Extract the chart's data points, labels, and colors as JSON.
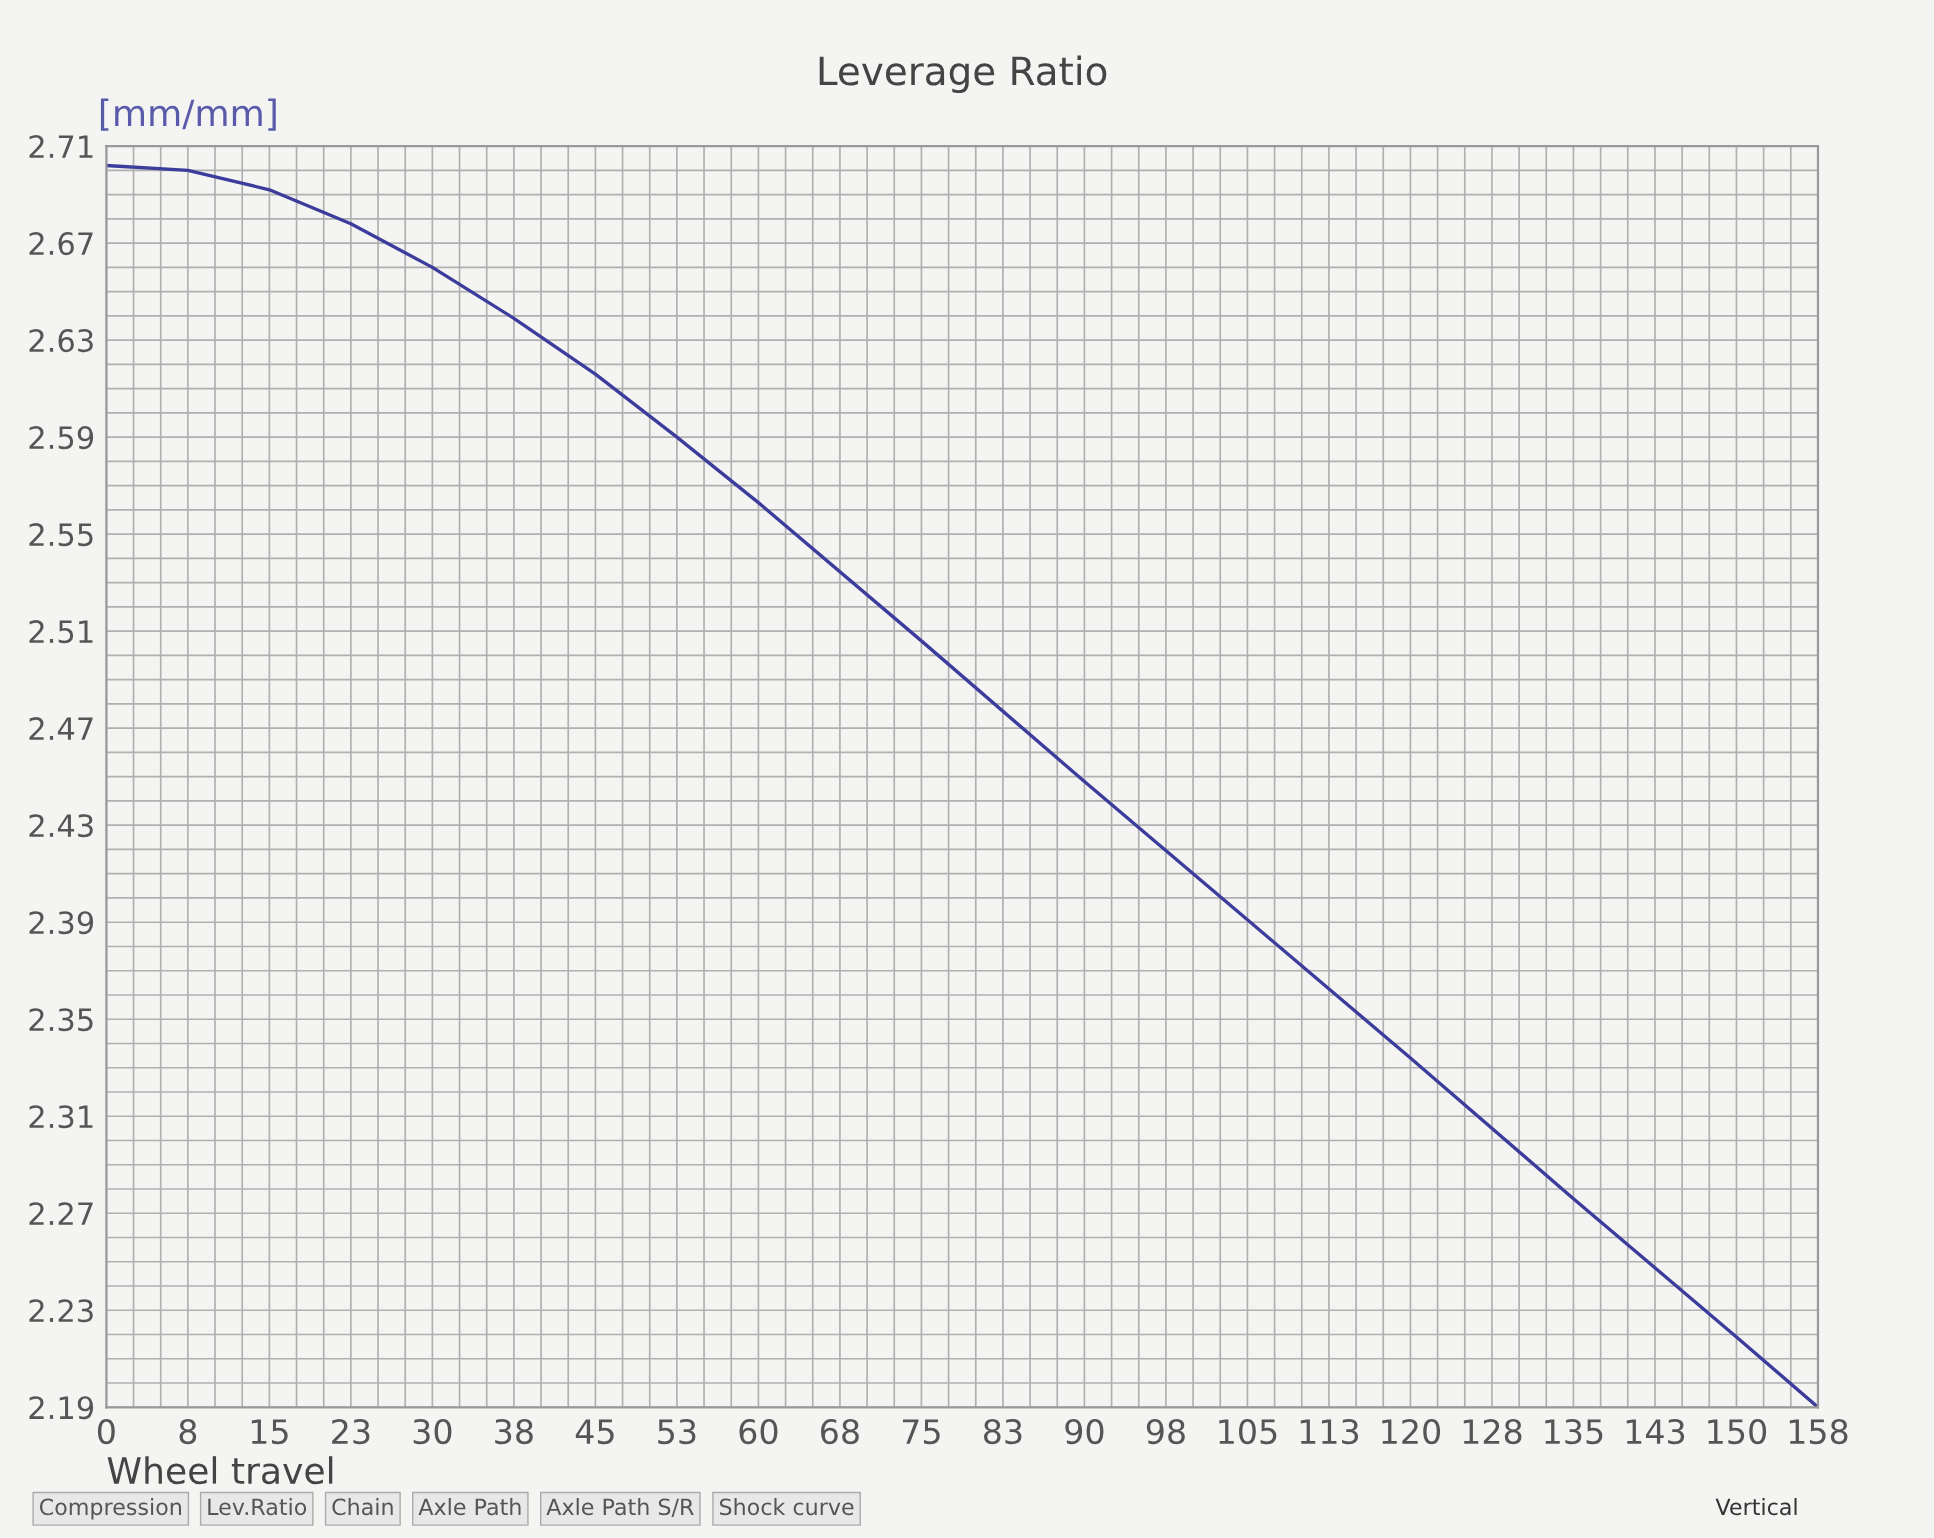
{
  "chart_data": {
    "type": "line",
    "title": "Leverage Ratio",
    "xlabel": "Wheel travel",
    "ylabel": "[mm/mm]",
    "x": [
      0,
      7.5,
      15,
      22.5,
      30,
      37.5,
      45,
      52.5,
      60,
      75,
      90,
      105,
      120,
      135,
      150,
      157.5
    ],
    "series": [
      {
        "color": "#3c3c9c",
        "values": [
          2.702,
          2.7,
          2.692,
          2.678,
          2.66,
          2.639,
          2.616,
          2.59,
          2.563,
          2.506,
          2.448,
          2.391,
          2.334,
          2.276,
          2.219,
          2.19
        ]
      }
    ],
    "xlim": [
      0,
      157.5
    ],
    "xticks": [
      0,
      {
        "value": 7.5,
        "label": "8"
      },
      15,
      {
        "value": 22.5,
        "label": "23"
      },
      30,
      {
        "value": 37.5,
        "label": "38"
      },
      45,
      {
        "value": 52.5,
        "label": "53"
      },
      60,
      {
        "value": 67.5,
        "label": "68"
      },
      75,
      {
        "value": 82.5,
        "label": "83"
      },
      90,
      {
        "value": 97.5,
        "label": "98"
      },
      105,
      {
        "value": 112.5,
        "label": "113"
      },
      120,
      {
        "value": 127.5,
        "label": "128"
      },
      135,
      {
        "value": 142.5,
        "label": "143"
      },
      150,
      {
        "value": 157.5,
        "label": "158"
      }
    ],
    "ylim": [
      2.19,
      2.71
    ],
    "yticks": [
      2.19,
      2.23,
      2.27,
      2.31,
      2.35,
      2.39,
      2.43,
      2.47,
      2.51,
      2.55,
      2.59,
      2.63,
      2.67,
      2.71
    ],
    "grid": true,
    "marker": "none",
    "line_style": "solid",
    "annotations": [
      "Compression",
      "Lev.Ratio",
      "Chain",
      "Axle Path",
      "Axle Path S/R",
      "Shock curve",
      "Vertical"
    ]
  }
}
